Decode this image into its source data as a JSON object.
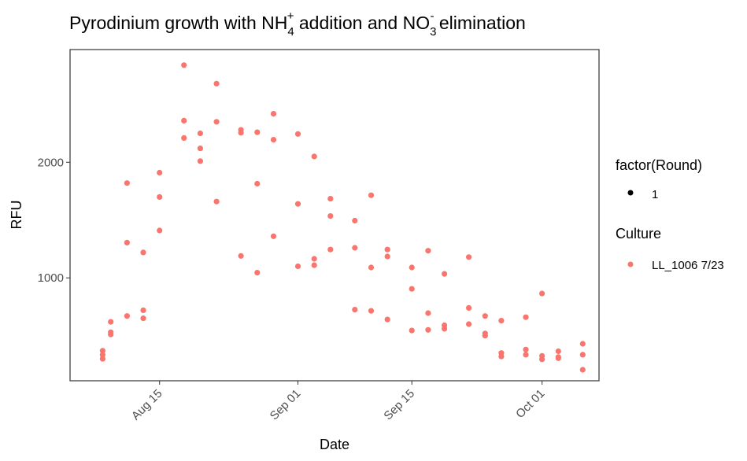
{
  "chart_data": {
    "type": "scatter",
    "title": "Pyrodinium growth with NH4+ addition and NO3- elimination",
    "title_parts": {
      "prefix": "Pyrodinium growth with NH",
      "nh4_sub": "4",
      "nh4_sup": "+",
      "middle": " addition and NO",
      "no3_sub": "3",
      "no3_sup": "-",
      "suffix": " elimination"
    },
    "xlabel": "Date",
    "ylabel": "RFU",
    "x_ticks": [
      {
        "date": "2023-08-15",
        "label": "Aug 15"
      },
      {
        "date": "2023-09-01",
        "label": "Sep 01"
      },
      {
        "date": "2023-09-15",
        "label": "Sep 15"
      },
      {
        "date": "2023-10-01",
        "label": "Oct 01"
      }
    ],
    "y_ticks": [
      1000,
      2000
    ],
    "xlim": [
      "2023-08-04",
      "2023-10-08"
    ],
    "ylim": [
      110,
      2975
    ],
    "point_color": "#F8766D",
    "legend": [
      {
        "title": "factor(Round)",
        "entries": [
          {
            "label": "1",
            "color": "#000000"
          }
        ]
      },
      {
        "title": "Culture",
        "entries": [
          {
            "label": "LL_1006 7/23",
            "color": "#F8766D"
          }
        ]
      }
    ],
    "series": [
      {
        "name": "LL_1006 7/23",
        "points": [
          {
            "x": "2023-08-08",
            "y": 370
          },
          {
            "x": "2023-08-08",
            "y": 335
          },
          {
            "x": "2023-08-08",
            "y": 300
          },
          {
            "x": "2023-08-09",
            "y": 620
          },
          {
            "x": "2023-08-09",
            "y": 530
          },
          {
            "x": "2023-08-09",
            "y": 510
          },
          {
            "x": "2023-08-11",
            "y": 1820
          },
          {
            "x": "2023-08-11",
            "y": 1305
          },
          {
            "x": "2023-08-11",
            "y": 670
          },
          {
            "x": "2023-08-13",
            "y": 1220
          },
          {
            "x": "2023-08-13",
            "y": 720
          },
          {
            "x": "2023-08-13",
            "y": 650
          },
          {
            "x": "2023-08-15",
            "y": 1910
          },
          {
            "x": "2023-08-15",
            "y": 1700
          },
          {
            "x": "2023-08-15",
            "y": 1410
          },
          {
            "x": "2023-08-18",
            "y": 2840
          },
          {
            "x": "2023-08-18",
            "y": 2360
          },
          {
            "x": "2023-08-18",
            "y": 2210
          },
          {
            "x": "2023-08-20",
            "y": 2250
          },
          {
            "x": "2023-08-20",
            "y": 2120
          },
          {
            "x": "2023-08-20",
            "y": 2010
          },
          {
            "x": "2023-08-22",
            "y": 2680
          },
          {
            "x": "2023-08-22",
            "y": 2350
          },
          {
            "x": "2023-08-22",
            "y": 1660
          },
          {
            "x": "2023-08-25",
            "y": 2280
          },
          {
            "x": "2023-08-25",
            "y": 2255
          },
          {
            "x": "2023-08-25",
            "y": 1190
          },
          {
            "x": "2023-08-27",
            "y": 2260
          },
          {
            "x": "2023-08-27",
            "y": 1815
          },
          {
            "x": "2023-08-27",
            "y": 1045
          },
          {
            "x": "2023-08-29",
            "y": 2420
          },
          {
            "x": "2023-08-29",
            "y": 2195
          },
          {
            "x": "2023-08-29",
            "y": 1360
          },
          {
            "x": "2023-09-01",
            "y": 2245
          },
          {
            "x": "2023-09-01",
            "y": 1640
          },
          {
            "x": "2023-09-01",
            "y": 1100
          },
          {
            "x": "2023-09-03",
            "y": 2050
          },
          {
            "x": "2023-09-03",
            "y": 1165
          },
          {
            "x": "2023-09-03",
            "y": 1110
          },
          {
            "x": "2023-09-05",
            "y": 1685
          },
          {
            "x": "2023-09-05",
            "y": 1535
          },
          {
            "x": "2023-09-05",
            "y": 1245
          },
          {
            "x": "2023-09-08",
            "y": 1495
          },
          {
            "x": "2023-09-08",
            "y": 1260
          },
          {
            "x": "2023-09-08",
            "y": 725
          },
          {
            "x": "2023-09-10",
            "y": 1715
          },
          {
            "x": "2023-09-10",
            "y": 1090
          },
          {
            "x": "2023-09-10",
            "y": 715
          },
          {
            "x": "2023-09-12",
            "y": 1245
          },
          {
            "x": "2023-09-12",
            "y": 1185
          },
          {
            "x": "2023-09-12",
            "y": 640
          },
          {
            "x": "2023-09-15",
            "y": 1090
          },
          {
            "x": "2023-09-15",
            "y": 905
          },
          {
            "x": "2023-09-15",
            "y": 545
          },
          {
            "x": "2023-09-17",
            "y": 1235
          },
          {
            "x": "2023-09-17",
            "y": 695
          },
          {
            "x": "2023-09-17",
            "y": 550
          },
          {
            "x": "2023-09-19",
            "y": 1035
          },
          {
            "x": "2023-09-19",
            "y": 590
          },
          {
            "x": "2023-09-19",
            "y": 560
          },
          {
            "x": "2023-09-22",
            "y": 1180
          },
          {
            "x": "2023-09-22",
            "y": 740
          },
          {
            "x": "2023-09-22",
            "y": 600
          },
          {
            "x": "2023-09-24",
            "y": 670
          },
          {
            "x": "2023-09-24",
            "y": 520
          },
          {
            "x": "2023-09-24",
            "y": 500
          },
          {
            "x": "2023-09-26",
            "y": 630
          },
          {
            "x": "2023-09-26",
            "y": 350
          },
          {
            "x": "2023-09-26",
            "y": 320
          },
          {
            "x": "2023-09-29",
            "y": 660
          },
          {
            "x": "2023-09-29",
            "y": 380
          },
          {
            "x": "2023-09-29",
            "y": 335
          },
          {
            "x": "2023-10-01",
            "y": 865
          },
          {
            "x": "2023-10-01",
            "y": 325
          },
          {
            "x": "2023-10-01",
            "y": 295
          },
          {
            "x": "2023-10-03",
            "y": 365
          },
          {
            "x": "2023-10-03",
            "y": 315
          },
          {
            "x": "2023-10-03",
            "y": 305
          },
          {
            "x": "2023-10-06",
            "y": 430
          },
          {
            "x": "2023-10-06",
            "y": 335
          },
          {
            "x": "2023-10-06",
            "y": 205
          }
        ]
      }
    ]
  }
}
